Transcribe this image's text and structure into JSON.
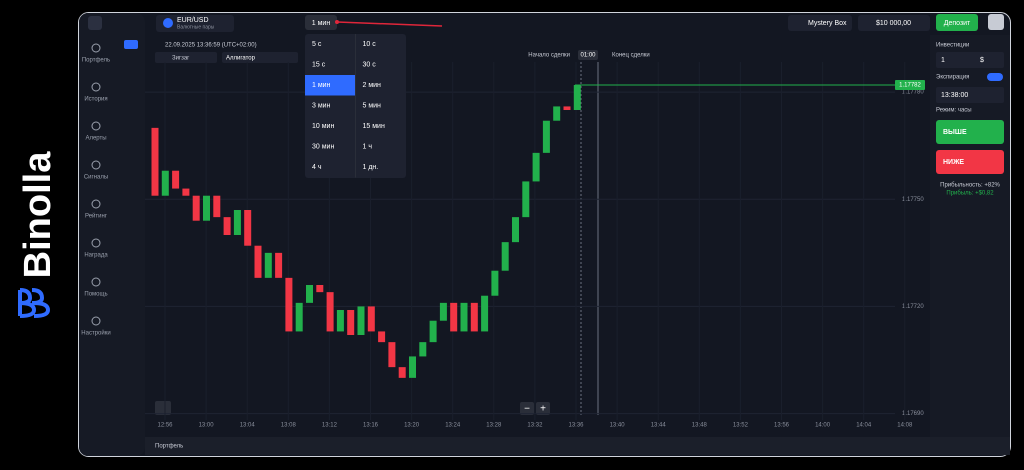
{
  "brand": "Binolla",
  "sidebar": [
    "Портфель",
    "История",
    "Алерты",
    "Сигналы",
    "Рейтинг",
    "Награда",
    "Помощь",
    "Настройки"
  ],
  "topbar": {
    "asset": "EUR/USD",
    "asset_type": "Валютные пары",
    "timeframe": "1 мин",
    "mystery_box": "Mystery Box",
    "balance": "$10 000,00",
    "deposit": "Депозит"
  },
  "timeframe_menu": {
    "options": [
      "5 с",
      "10 с",
      "15 с",
      "30 с",
      "1 мин",
      "2 мин",
      "3 мин",
      "5 мин",
      "10 мин",
      "15 мин",
      "30 мин",
      "1 ч",
      "4 ч",
      "1 дн."
    ],
    "selected": 4
  },
  "chart_header": {
    "datetime": "22.09.2025 13:36:59 (UTC+02:00)",
    "indicators": [
      "Зигзаг",
      "Аллигатор"
    ]
  },
  "trade_markers": {
    "start": "Начало сделки",
    "timer": "01:00",
    "end": "Конец сделки"
  },
  "chart_data": {
    "type": "candlestick",
    "x_labels": [
      "12:56",
      "13:00",
      "13:04",
      "13:08",
      "13:12",
      "13:16",
      "13:20",
      "13:24",
      "13:28",
      "13:32",
      "13:36",
      "13:40",
      "13:44",
      "13:48",
      "13:52",
      "13:56",
      "14:00",
      "14:04",
      "14:08"
    ],
    "opens": [
      1.1777,
      1.17751,
      1.17758,
      1.17753,
      1.17751,
      1.17744,
      1.17751,
      1.17745,
      1.1774,
      1.17747,
      1.17737,
      1.17728,
      1.17735,
      1.17728,
      1.17713,
      1.17721,
      1.17726,
      1.17724,
      1.17713,
      1.17719,
      1.17712,
      1.1772,
      1.17713,
      1.1771,
      1.17703,
      1.177,
      1.17706,
      1.1771,
      1.17716,
      1.17721,
      1.17713,
      1.17721,
      1.17713,
      1.17723,
      1.1773,
      1.17738,
      1.17745,
      1.17755,
      1.17763,
      1.17772,
      1.17776,
      1.17775
    ],
    "closes": [
      1.17751,
      1.17758,
      1.17753,
      1.17751,
      1.17744,
      1.17751,
      1.17745,
      1.1774,
      1.17747,
      1.17737,
      1.17728,
      1.17735,
      1.17728,
      1.17713,
      1.17721,
      1.17726,
      1.17724,
      1.17713,
      1.17719,
      1.17712,
      1.1772,
      1.17713,
      1.1771,
      1.17703,
      1.177,
      1.17706,
      1.1771,
      1.17716,
      1.17721,
      1.17713,
      1.17721,
      1.17713,
      1.17723,
      1.1773,
      1.17738,
      1.17745,
      1.17755,
      1.17763,
      1.17772,
      1.17776,
      1.17775,
      1.17782
    ],
    "current_price": 1.17782,
    "up_color": "#22b14c",
    "down_color": "#f23645",
    "ylim": [
      1.17684,
      1.17796
    ],
    "yticks": [
      {
        "value": 1.1778,
        "label": "1.17780"
      },
      {
        "value": 1.1775,
        "label": "1.17750"
      },
      {
        "value": 1.1772,
        "label": "1.17720"
      },
      {
        "value": 1.1769,
        "label": "1.17690"
      }
    ]
  },
  "zoom": [
    "−",
    "+"
  ],
  "panel": {
    "investment_label": "Инвестиции",
    "investment": "1",
    "currency": "$",
    "expiration_label": "Экспирация",
    "expiration": "13:38:00",
    "mode": "Режим: часы",
    "up": "ВЫШЕ",
    "down": "НИЖЕ",
    "profitability": "Прибыльность: +82%",
    "profit": "Прибыль: +$0,82"
  },
  "footer": "Портфель"
}
